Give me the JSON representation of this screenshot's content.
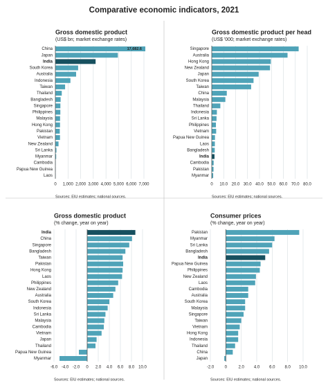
{
  "title": "Comparative economic indicators, 2021",
  "chart_data": [
    {
      "type": "bar",
      "orientation": "horizontal",
      "title": "Gross domestic product",
      "subtitle": "(US$ bn; market exchange rates)",
      "source": "Sources: EIU estimates; national sources.",
      "categories": [
        "China",
        "Japan",
        "India",
        "South Korea",
        "Australia",
        "Indonesia",
        "Taiwan",
        "Thailand",
        "Bangladesh",
        "Singapore",
        "Philippines",
        "Malaysia",
        "Hong Kong",
        "Pakistan",
        "Vietnam",
        "New Zealand",
        "Sri Lanka",
        "Myanmar",
        "Cambodia",
        "Papua New Guinea",
        "Laos"
      ],
      "values": [
        17682.6,
        4940,
        3180,
        1800,
        1640,
        1190,
        770,
        506,
        416,
        397,
        394,
        373,
        368,
        348,
        366,
        250,
        85,
        65,
        27,
        26,
        19
      ],
      "value_labels": [
        "17,682.6",
        null,
        null,
        null,
        null,
        null,
        null,
        null,
        null,
        null,
        null,
        null,
        null,
        null,
        null,
        null,
        null,
        null,
        null,
        null,
        null
      ],
      "color": "#4fa3b8",
      "highlight": "India",
      "highlight_color": "#17505f",
      "xlim": [
        0,
        7000
      ],
      "xticks": [
        0,
        {
          "value": 1000,
          "label": "1,000"
        },
        {
          "value": 2000,
          "label": "2,000"
        },
        {
          "value": 3000,
          "label": "3,000"
        },
        {
          "value": 4000,
          "label": "4,000"
        },
        {
          "value": 5000,
          "label": "5,000"
        },
        {
          "value": 6000,
          "label": "6,000"
        },
        {
          "value": 7000,
          "label": "7,000"
        }
      ],
      "grid": true
    },
    {
      "type": "bar",
      "orientation": "horizontal",
      "title": "Gross domestic product per head",
      "subtitle": "(US$ '000; market exchange rates)",
      "source": "Sources: EIU estimates; national sources.",
      "categories": [
        "Singapore",
        "Australia",
        "Hong Kong",
        "New Zealand",
        "Japan",
        "South Korea",
        "Taiwan",
        "China",
        "Malaysia",
        "Thailand",
        "Indonesia",
        "Sri Lanka",
        "Philippines",
        "Vietnam",
        "Papua New Guinea",
        "Laos",
        "Bangladesh",
        "India",
        "Cambodia",
        "Pakistan",
        "Myanmar"
      ],
      "values": [
        72.8,
        63.5,
        49.5,
        48.8,
        39.3,
        35.0,
        33.0,
        12.6,
        11.4,
        7.2,
        4.3,
        4.0,
        3.5,
        3.7,
        2.7,
        2.6,
        2.5,
        2.3,
        1.6,
        1.5,
        1.2
      ],
      "color": "#4fa3b8",
      "highlight": "India",
      "highlight_color": "#17505f",
      "xlim": [
        0,
        80
      ],
      "xticks": [
        0,
        {
          "value": 10,
          "label": "10.0"
        },
        {
          "value": 20,
          "label": "20.0"
        },
        {
          "value": 30,
          "label": "30.0"
        },
        {
          "value": 40,
          "label": "40.0"
        },
        {
          "value": 50,
          "label": "50.0"
        },
        {
          "value": 60,
          "label": "60.0"
        },
        {
          "value": 70,
          "label": "70.0"
        },
        {
          "value": 80,
          "label": "80.0"
        }
      ],
      "grid": true
    },
    {
      "type": "bar",
      "orientation": "horizontal",
      "title": "Gross domestic product",
      "subtitle": "(% change, year on year)",
      "source": "Sources: EIU estimates; national sources.",
      "categories": [
        "India",
        "China",
        "Singapore",
        "Bangladesh",
        "Taiwan",
        "Pakistan",
        "Hong Kong",
        "Laos",
        "Philippines",
        "New Zealand",
        "Australia",
        "South Korea",
        "Indonesia",
        "Sri Lanka",
        "Malaysia",
        "Cambodia",
        "Vietnam",
        "Japan",
        "Thailand",
        "Papua New Guinea",
        "Myanmar"
      ],
      "values": [
        8.7,
        8.1,
        7.6,
        6.9,
        6.4,
        6.5,
        6.4,
        6.3,
        5.6,
        5.1,
        4.7,
        4.0,
        3.7,
        3.3,
        3.1,
        3.0,
        2.6,
        1.7,
        1.5,
        -1.5,
        -5.0
      ],
      "color": "#4fa3b8",
      "highlight": "India",
      "highlight_color": "#17505f",
      "xlim": [
        -6,
        10
      ],
      "xticks": [
        {
          "value": -6,
          "label": "-6.0"
        },
        {
          "value": -4,
          "label": "-4.0"
        },
        {
          "value": -2,
          "label": "-2.0"
        },
        0,
        {
          "value": 2,
          "label": "2.0"
        },
        {
          "value": 4,
          "label": "4.0"
        },
        {
          "value": 6,
          "label": "6.0"
        },
        {
          "value": 8,
          "label": "8.0"
        },
        {
          "value": 10,
          "label": "10.0"
        }
      ],
      "grid": true
    },
    {
      "type": "bar",
      "orientation": "horizontal",
      "title": "Consumer prices",
      "subtitle": "(% change, year on year)",
      "source": "Sources: EIU estimates; national sources.",
      "categories": [
        "Pakistan",
        "Myanmar",
        "Sri Lanka",
        "Bangladesh",
        "India",
        "Papua New Guinea",
        "Philippines",
        "New Zealand",
        "Laos",
        "Cambodia",
        "Australia",
        "South Korea",
        "Malaysia",
        "Singapore",
        "Taiwan",
        "Vietnam",
        "Hong Kong",
        "Indonesia",
        "Thailand",
        "China",
        "Japan"
      ],
      "values": [
        9.5,
        6.3,
        6.0,
        5.6,
        5.1,
        4.5,
        4.4,
        3.9,
        3.8,
        2.9,
        2.9,
        2.5,
        2.5,
        2.3,
        2.0,
        1.8,
        1.6,
        1.6,
        1.2,
        0.9,
        -0.2
      ],
      "color": "#4fa3b8",
      "highlight": "India",
      "highlight_color": "#17505f",
      "xlim": [
        -2,
        10
      ],
      "xticks": [
        {
          "value": -2,
          "label": "-2.0"
        },
        0,
        {
          "value": 2,
          "label": "2.0"
        },
        {
          "value": 4,
          "label": "4.0"
        },
        {
          "value": 6,
          "label": "6.0"
        },
        {
          "value": 8,
          "label": "8.0"
        },
        {
          "value": 10,
          "label": "10.0"
        }
      ],
      "grid": true
    }
  ]
}
